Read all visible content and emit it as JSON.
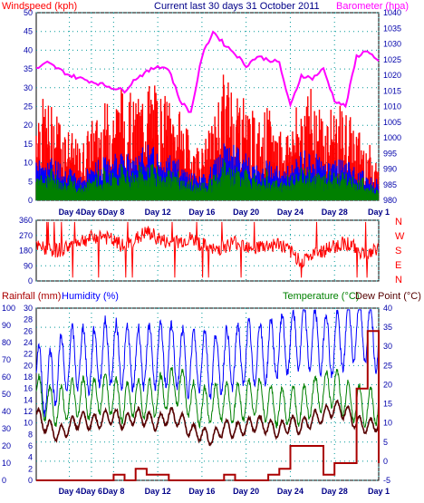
{
  "header": {
    "title": "Current last 30 days 31 October 2011",
    "wind_label": "Windspeed (kph)",
    "baro_label": "Barometer (hpa)"
  },
  "panel2": {
    "compass": [
      "N",
      "W",
      "S",
      "E",
      "N"
    ]
  },
  "panel3": {
    "rain_label": "Rainfall (mm)",
    "humidity_label": "Humidity (%)",
    "temp_label": "Temperature (°C)",
    "dew_label": "Dew Point (°C)"
  },
  "colors": {
    "windspeed": "#ff0000",
    "wind_avg": "#0000ff",
    "wind_min": "#008000",
    "barometer": "#ff00ff",
    "direction": "#ff0000",
    "humidity": "#0000ff",
    "temperature": "#008000",
    "dewpoint": "#550000",
    "rainfall": "#aa0000",
    "title": "#000088",
    "axis_text": "#0000aa"
  },
  "chart_data": [
    {
      "type": "area",
      "title": "Current last 30 days 31 October 2011",
      "x_labels": [
        "Day 4",
        "Day 6",
        "Day 8",
        "Day 12",
        "Day 16",
        "Day 20",
        "Day 24",
        "Day 28",
        "Day 1"
      ],
      "x_label_days": [
        4,
        6,
        8,
        12,
        16,
        20,
        24,
        28,
        32
      ],
      "x_range": [
        1,
        32
      ],
      "y_left": {
        "label": "Windspeed (kph)",
        "min": 0,
        "max": 50,
        "ticks": [
          0,
          5,
          10,
          15,
          20,
          25,
          30,
          35,
          40,
          45,
          50
        ]
      },
      "y_right": {
        "label": "Barometer (hpa)",
        "min": 980,
        "max": 1040,
        "ticks": [
          980,
          985,
          990,
          995,
          1000,
          1005,
          1010,
          1015,
          1020,
          1025,
          1030,
          1035,
          1040
        ]
      },
      "grid": true,
      "series": [
        {
          "name": "Windspeed (kph)",
          "x": [
            1,
            2,
            3,
            4,
            5,
            6,
            7,
            8,
            9,
            10,
            11,
            12,
            13,
            14,
            15,
            16,
            17,
            18,
            19,
            20,
            21,
            22,
            23,
            24,
            25,
            26,
            27,
            28,
            29,
            30,
            31,
            32
          ],
          "values": [
            24,
            22,
            20,
            16,
            12,
            18,
            21,
            24,
            26,
            22,
            28,
            25,
            23,
            20,
            14,
            12,
            18,
            29,
            27,
            23,
            18,
            21,
            16,
            17,
            24,
            25,
            19,
            22,
            20,
            17,
            13,
            10
          ]
        },
        {
          "name": "Barometer (hpa)",
          "x": [
            1,
            2,
            3,
            4,
            5,
            6,
            7,
            8,
            9,
            10,
            11,
            12,
            13,
            14,
            15,
            16,
            17,
            18,
            19,
            20,
            21,
            22,
            23,
            24,
            25,
            26,
            27,
            28,
            29,
            30,
            31,
            32
          ],
          "values": [
            1022,
            1024,
            1022,
            1020,
            1019,
            1018,
            1017,
            1016,
            1015,
            1019,
            1021,
            1023,
            1022,
            1012,
            1008,
            1026,
            1034,
            1030,
            1027,
            1023,
            1026,
            1025,
            1024,
            1010,
            1020,
            1019,
            1022,
            1012,
            1010,
            1026,
            1028,
            1024
          ]
        }
      ]
    },
    {
      "type": "line",
      "x_range": [
        1,
        32
      ],
      "y": {
        "label": "",
        "min": 0,
        "max": 360,
        "ticks": [
          0,
          90,
          180,
          270,
          360
        ]
      },
      "grid": true,
      "series": [
        {
          "name": "",
          "x": [
            1,
            3,
            5,
            7,
            9,
            11,
            13,
            15,
            17,
            19,
            21,
            23,
            25,
            27,
            29,
            31,
            32
          ],
          "values": [
            200,
            180,
            240,
            270,
            200,
            290,
            220,
            250,
            180,
            230,
            200,
            220,
            120,
            180,
            230,
            150,
            200
          ]
        }
      ]
    },
    {
      "type": "line",
      "x_labels": [
        "Day 4",
        "Day 6",
        "Day 8",
        "Day 12",
        "Day 16",
        "Day 20",
        "Day 24",
        "Day 28",
        "Day 1"
      ],
      "x_label_days": [
        4,
        6,
        8,
        12,
        16,
        20,
        24,
        28,
        32
      ],
      "x_range": [
        1,
        32
      ],
      "y_left_rain": {
        "label": "Rainfall (mm)",
        "min": 0,
        "max": 30,
        "ticks": [
          0,
          2,
          4,
          6,
          8,
          10,
          12,
          14,
          16,
          18,
          20,
          22,
          24,
          26,
          28,
          30
        ]
      },
      "y_left_humidity": {
        "label": "Humidity (%)",
        "min": 0,
        "max": 100,
        "ticks": [
          0,
          10,
          20,
          30,
          40,
          50,
          60,
          70,
          80,
          90,
          100
        ]
      },
      "y_right": {
        "label": "Temperature (°C)",
        "min": -5,
        "max": 40,
        "ticks": [
          -5,
          0,
          5,
          10,
          15,
          20,
          25,
          30,
          35,
          40
        ]
      },
      "grid": true,
      "series": [
        {
          "name": "Humidity (%)",
          "axis": "humidity",
          "x": [
            1,
            2,
            3,
            4,
            5,
            6,
            7,
            8,
            9,
            10,
            11,
            12,
            13,
            14,
            15,
            16,
            17,
            18,
            19,
            20,
            21,
            22,
            23,
            24,
            25,
            26,
            27,
            28,
            29,
            30,
            31,
            32
          ],
          "values": [
            62,
            55,
            65,
            70,
            72,
            68,
            75,
            74,
            72,
            70,
            73,
            72,
            74,
            70,
            68,
            71,
            66,
            70,
            72,
            74,
            73,
            75,
            78,
            80,
            84,
            82,
            80,
            78,
            84,
            88,
            86,
            82
          ]
        },
        {
          "name": "Temperature (°C)",
          "axis": "temp",
          "x": [
            1,
            2,
            3,
            4,
            5,
            6,
            7,
            8,
            9,
            10,
            11,
            12,
            13,
            14,
            15,
            16,
            17,
            18,
            19,
            20,
            21,
            22,
            23,
            24,
            25,
            26,
            27,
            28,
            29,
            30,
            31,
            32
          ],
          "values": [
            18,
            15,
            14,
            16,
            17,
            16,
            18,
            17,
            15,
            17,
            16,
            17,
            19,
            20,
            16,
            14,
            15,
            16,
            15,
            16,
            17,
            15,
            14,
            15,
            14,
            17,
            18,
            20,
            16,
            15,
            14,
            15
          ]
        },
        {
          "name": "Dew Point (°C)",
          "axis": "temp",
          "x": [
            1,
            2,
            3,
            4,
            5,
            6,
            7,
            8,
            9,
            10,
            11,
            12,
            13,
            14,
            15,
            16,
            17,
            18,
            19,
            20,
            21,
            22,
            23,
            24,
            25,
            26,
            27,
            28,
            29,
            30,
            31,
            32
          ],
          "values": [
            12,
            9,
            7,
            9,
            11,
            10,
            11,
            12,
            10,
            12,
            11,
            10,
            12,
            11,
            8,
            7,
            6,
            9,
            8,
            9,
            10,
            9,
            8,
            10,
            9,
            11,
            12,
            14,
            13,
            10,
            9,
            10
          ]
        },
        {
          "name": "Rainfall (mm)",
          "axis": "rain",
          "x": [
            1,
            2,
            3,
            4,
            5,
            6,
            7,
            8,
            9,
            10,
            11,
            12,
            13,
            14,
            15,
            16,
            17,
            18,
            19,
            20,
            21,
            22,
            23,
            24,
            25,
            26,
            27,
            28,
            29,
            30,
            31,
            32
          ],
          "values": [
            0,
            0,
            0,
            0,
            0,
            0,
            0,
            1,
            0,
            2,
            1,
            1,
            0,
            0,
            0,
            0,
            0,
            1,
            0,
            0,
            0,
            1,
            2,
            6,
            6,
            6,
            1,
            3,
            3,
            16,
            26,
            3
          ]
        }
      ]
    }
  ]
}
